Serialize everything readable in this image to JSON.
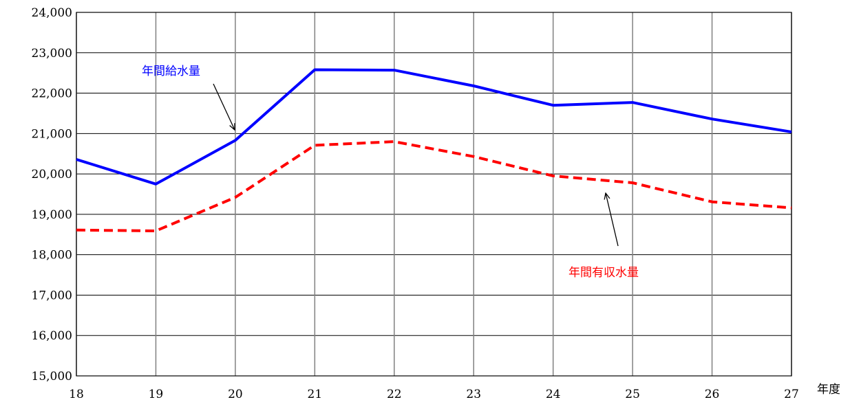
{
  "chart_data": {
    "type": "line",
    "x": [
      18,
      19,
      20,
      21,
      22,
      23,
      24,
      25,
      26,
      27
    ],
    "xlabel": "年度",
    "ylabel": "",
    "ylim": [
      15000,
      24000
    ],
    "yticks": [
      "15,000",
      "16,000",
      "17,000",
      "18,000",
      "19,000",
      "20,000",
      "21,000",
      "22,000",
      "23,000",
      "24,000"
    ],
    "xticks": [
      "18",
      "19",
      "20",
      "21",
      "22",
      "23",
      "24",
      "25",
      "26",
      "27"
    ],
    "grid": true,
    "series": [
      {
        "name": "年間給水量",
        "color": "#0000ff",
        "style": "solid",
        "values": [
          20360,
          19750,
          20830,
          22580,
          22570,
          22180,
          21700,
          21770,
          21360,
          21040
        ]
      },
      {
        "name": "年間有収水量",
        "color": "#ff0000",
        "style": "dashed",
        "values": [
          18610,
          18590,
          19420,
          20710,
          20800,
          20430,
          19950,
          19780,
          19310,
          19160
        ]
      }
    ]
  }
}
